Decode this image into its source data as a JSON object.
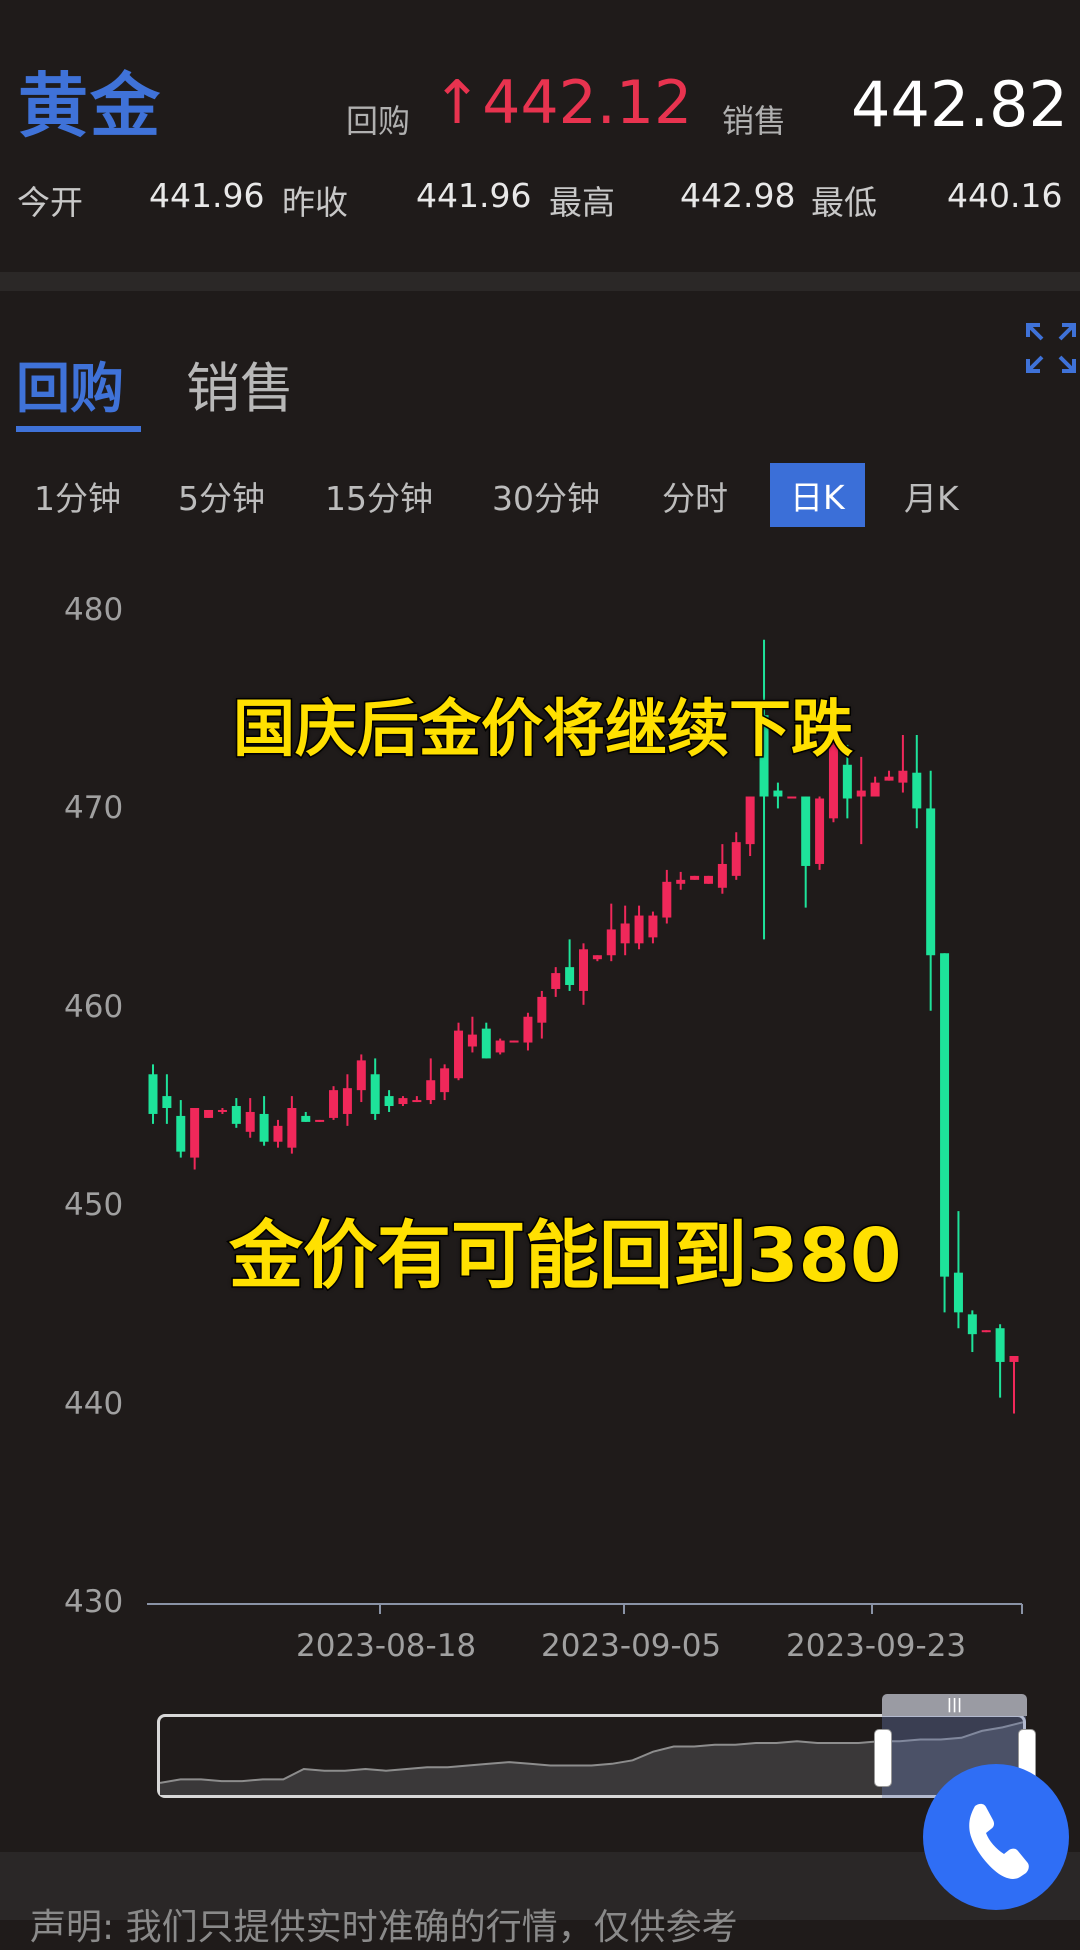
{
  "header": {
    "title": "黄金",
    "buy_label": "回购",
    "buy_arrow": "↑",
    "buy_price": "442.12",
    "sell_label": "销售",
    "sell_price": "442.82"
  },
  "stats": [
    {
      "label": "今开",
      "value": "441.96"
    },
    {
      "label": "昨收",
      "value": "441.96"
    },
    {
      "label": "最高",
      "value": "442.98"
    },
    {
      "label": "最低",
      "value": "440.16"
    }
  ],
  "tabs": [
    {
      "label": "回购",
      "active": true
    },
    {
      "label": "销售",
      "active": false
    }
  ],
  "periods": [
    {
      "label": "1分钟"
    },
    {
      "label": "5分钟"
    },
    {
      "label": "15分钟"
    },
    {
      "label": "30分钟"
    },
    {
      "label": "分时"
    },
    {
      "label": "日K",
      "active": true
    },
    {
      "label": "月K"
    }
  ],
  "overlay": {
    "line1": "国庆后金价将继续下跌",
    "line2": "金价有可能回到380"
  },
  "disclaimer": "声明: 我们只提供实时准确的行情，仅供参考",
  "colors": {
    "accent": "#3f72d8",
    "up": "#f0285a",
    "down": "#1ee39a",
    "price_up": "#e8334f",
    "overlay_text": "#ffe000"
  },
  "chart_data": {
    "type": "candlestick",
    "ylim": [
      430,
      480
    ],
    "yticks": [
      "480",
      "470",
      "460",
      "450",
      "440",
      "430"
    ],
    "xticks": [
      "2023-08-18",
      "2023-09-05",
      "2023-09-23"
    ],
    "candles_ohlc": [
      [
        456.7,
        457.2,
        454.2,
        454.7
      ],
      [
        455.6,
        456.7,
        454.2,
        455.0
      ],
      [
        454.6,
        455.4,
        452.5,
        452.8
      ],
      [
        452.5,
        455.0,
        451.9,
        455.0
      ],
      [
        454.5,
        454.9,
        454.5,
        454.9
      ],
      [
        454.8,
        455.0,
        454.7,
        454.9
      ],
      [
        455.1,
        455.5,
        454.0,
        454.2
      ],
      [
        453.8,
        455.5,
        453.5,
        454.8
      ],
      [
        454.7,
        455.6,
        453.1,
        453.3
      ],
      [
        453.3,
        454.4,
        453.0,
        454.1
      ],
      [
        453.0,
        455.6,
        452.7,
        455.0
      ],
      [
        454.6,
        454.8,
        454.3,
        454.3
      ],
      [
        454.3,
        454.4,
        454.3,
        454.4
      ],
      [
        454.5,
        456.1,
        454.4,
        455.9
      ],
      [
        454.7,
        456.7,
        454.1,
        456.0
      ],
      [
        455.9,
        457.7,
        455.3,
        457.4
      ],
      [
        456.7,
        457.5,
        454.4,
        454.7
      ],
      [
        455.6,
        455.9,
        454.8,
        455.1
      ],
      [
        455.2,
        455.6,
        455.1,
        455.5
      ],
      [
        455.3,
        455.6,
        455.3,
        455.4
      ],
      [
        455.4,
        457.5,
        455.2,
        456.4
      ],
      [
        455.8,
        457.2,
        455.4,
        457.0
      ],
      [
        456.5,
        459.3,
        456.4,
        458.9
      ],
      [
        458.1,
        459.6,
        457.8,
        458.7
      ],
      [
        459.0,
        459.3,
        457.5,
        457.5
      ],
      [
        457.8,
        458.5,
        457.7,
        458.4
      ],
      [
        458.3,
        458.4,
        458.3,
        458.4
      ],
      [
        458.3,
        459.8,
        457.9,
        459.6
      ],
      [
        459.3,
        460.9,
        458.5,
        460.6
      ],
      [
        461.0,
        462.1,
        460.6,
        461.8
      ],
      [
        462.1,
        463.5,
        460.9,
        461.2
      ],
      [
        460.9,
        463.3,
        460.2,
        463.0
      ],
      [
        462.5,
        462.7,
        462.4,
        462.7
      ],
      [
        462.7,
        465.3,
        462.4,
        464.0
      ],
      [
        463.3,
        465.2,
        462.7,
        464.3
      ],
      [
        463.3,
        465.2,
        463.0,
        464.7
      ],
      [
        463.6,
        464.9,
        463.3,
        464.7
      ],
      [
        464.6,
        467.0,
        464.3,
        466.4
      ],
      [
        466.3,
        466.9,
        466.0,
        466.5
      ],
      [
        466.5,
        466.7,
        466.5,
        466.7
      ],
      [
        466.3,
        466.7,
        466.3,
        466.7
      ],
      [
        466.1,
        468.3,
        465.8,
        467.3
      ],
      [
        466.7,
        468.9,
        466.5,
        468.4
      ],
      [
        468.3,
        470.7,
        467.7,
        470.7
      ],
      [
        474.8,
        478.6,
        463.5,
        470.7
      ],
      [
        471.0,
        471.4,
        470.1,
        470.7
      ],
      [
        470.6,
        470.7,
        470.6,
        470.7
      ],
      [
        470.7,
        470.7,
        465.1,
        467.2
      ],
      [
        467.3,
        470.7,
        467.0,
        470.6
      ],
      [
        469.6,
        473.8,
        469.4,
        473.3
      ],
      [
        472.3,
        473.3,
        469.6,
        470.6
      ],
      [
        470.7,
        472.7,
        468.3,
        471.0
      ],
      [
        470.7,
        471.7,
        470.7,
        471.4
      ],
      [
        471.5,
        472.0,
        471.5,
        471.7
      ],
      [
        471.4,
        473.8,
        470.9,
        472.0
      ],
      [
        471.9,
        473.8,
        469.1,
        470.1
      ],
      [
        470.1,
        472.0,
        459.9,
        462.7
      ],
      [
        462.8,
        462.8,
        444.7,
        446.5
      ],
      [
        446.7,
        449.8,
        443.9,
        444.7
      ],
      [
        444.6,
        444.8,
        442.7,
        443.6
      ],
      [
        443.7,
        443.8,
        443.7,
        443.8
      ],
      [
        443.9,
        444.1,
        440.4,
        442.2
      ],
      [
        442.2,
        442.5,
        439.6,
        442.5
      ]
    ],
    "navigator": {
      "values": [
        402,
        404,
        404,
        403,
        403,
        404,
        404,
        410,
        409,
        409,
        410,
        409,
        410,
        411,
        411,
        412,
        413,
        414,
        413,
        412,
        412,
        412,
        413,
        415,
        420,
        423,
        423,
        424,
        424,
        425,
        425,
        426,
        425,
        425,
        425,
        426,
        426,
        427,
        427,
        428,
        432,
        434,
        437
      ]
    }
  }
}
